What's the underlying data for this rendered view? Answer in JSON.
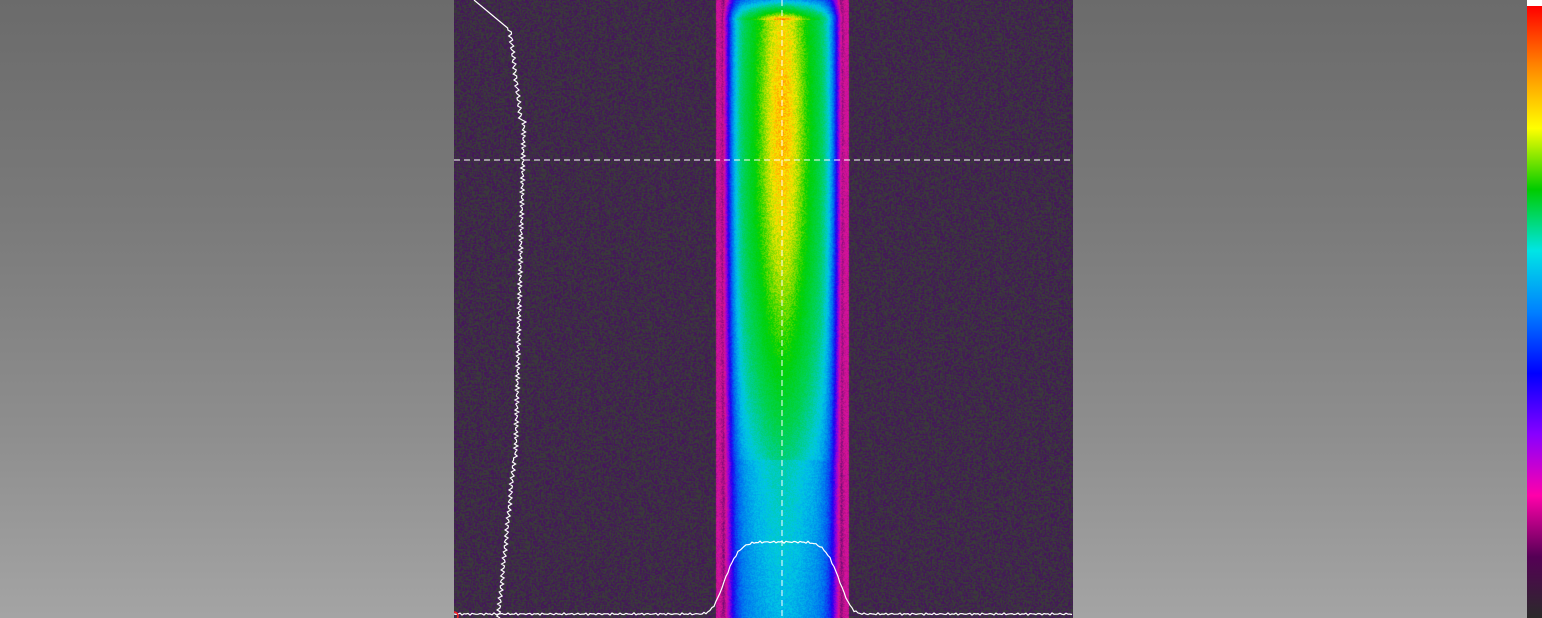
{
  "app": {
    "view": "beam-profile-viewer"
  },
  "image": {
    "palette": "rainbow-false-color",
    "background_color": "#3a3a3a",
    "noise_color": "#3f1a55",
    "beam": {
      "shape": "vertical-stripe",
      "peak_color": "#00d400",
      "edge_color": "#ff1493"
    }
  },
  "crosshair": {
    "color": "#ffffff",
    "style": "dashed"
  },
  "profiles": {
    "color": "#ffffff",
    "horizontal": "bottom",
    "vertical": "left"
  },
  "origin_marker": {
    "color": "#ff2020"
  },
  "colorbar": {
    "orientation": "vertical",
    "stops": [
      "#ff0000",
      "#ff8800",
      "#ffff00",
      "#00cc00",
      "#00e5e5",
      "#0080ff",
      "#0000ff",
      "#8800ff",
      "#ff00aa",
      "#550055",
      "#2a2a2a"
    ]
  }
}
